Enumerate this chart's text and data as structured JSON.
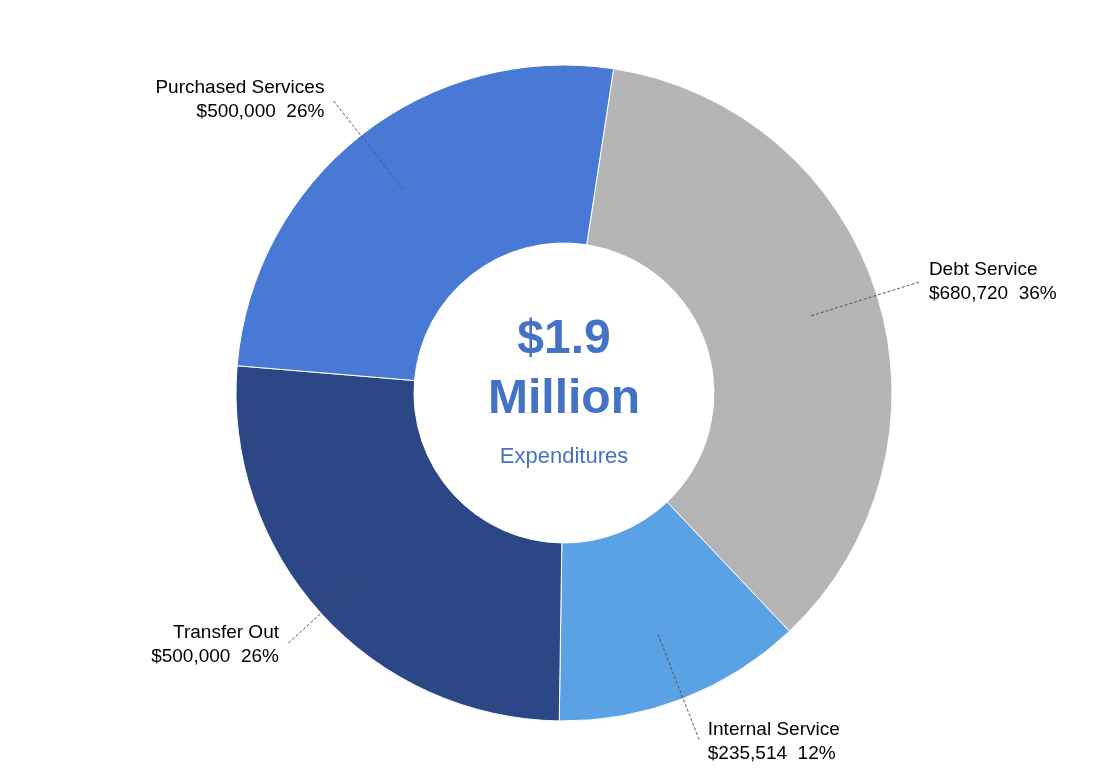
{
  "chart_data": {
    "type": "donut",
    "title": "$1.9 Million",
    "subtitle": "Expenditures",
    "categories": [
      "Debt Service",
      "Internal Service",
      "Transfer Out",
      "Purchased Services"
    ],
    "values": [
      680720,
      235514,
      500000,
      500000
    ],
    "colors": [
      "#b5b5b5",
      "#5aa2e4",
      "#2c4785",
      "#4879d4"
    ],
    "value_labels": [
      "$680,720  36%",
      "$235,514  12%",
      "$500,000  26%",
      "$500,000  26%"
    ],
    "legend": false
  }
}
